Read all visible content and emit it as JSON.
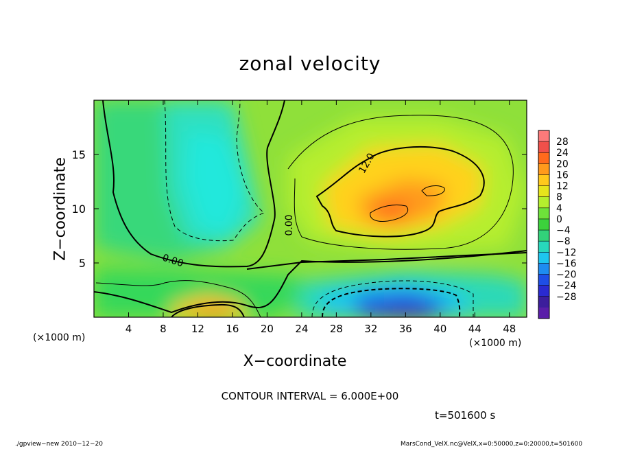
{
  "chart_data": {
    "type": "heatmap",
    "title": "zonal velocity",
    "xlabel": "X−coordinate",
    "ylabel": "Z−coordinate",
    "x_unit": "(×1000 m)",
    "xlim": [
      0,
      50
    ],
    "ylim": [
      0,
      20
    ],
    "x_ticks": [
      "4",
      "8",
      "12",
      "16",
      "20",
      "24",
      "28",
      "32",
      "36",
      "40",
      "44",
      "48"
    ],
    "x_tick_values": [
      4,
      8,
      12,
      16,
      20,
      24,
      28,
      32,
      36,
      40,
      44,
      48
    ],
    "y_ticks": [
      "5",
      "10",
      "15"
    ],
    "y_tick_values": [
      5,
      10,
      15
    ],
    "colorbar_labels": [
      "28",
      "24",
      "20",
      "16",
      "12",
      "8",
      "4",
      "0",
      "−4",
      "−8",
      "−12",
      "−16",
      "−20",
      "−24",
      "−28"
    ],
    "colorbar_levels": [
      28,
      24,
      20,
      16,
      12,
      8,
      4,
      0,
      -4,
      -8,
      -12,
      -16,
      -20,
      -24,
      -28
    ],
    "contour_labels": [
      "12.0",
      "0.00",
      "0.00"
    ],
    "contour_interval": 6,
    "features": [
      {
        "x": 34,
        "z": 10,
        "value": 18
      },
      {
        "x": 39,
        "z": 12,
        "value": 17
      },
      {
        "x": 15,
        "z": 1,
        "value": 15
      },
      {
        "x": 35,
        "z": 1,
        "value": -17
      },
      {
        "x": 17,
        "z": 11,
        "value": -8
      }
    ],
    "grid": false
  },
  "text": {
    "contour_interval_label": "CONTOUR INTERVAL = 6.000E+00",
    "time_label": "t=501600 s",
    "footer_left": "./gpview−new   2010−12−20",
    "footer_right": "MarsCond_VelX.nc@VelX,x=0:50000,z=0:20000,t=501600"
  },
  "colors": {
    "positive_high": "#f0504a",
    "mid": "#3cd23c",
    "negative_low": "#3c1e9c"
  }
}
